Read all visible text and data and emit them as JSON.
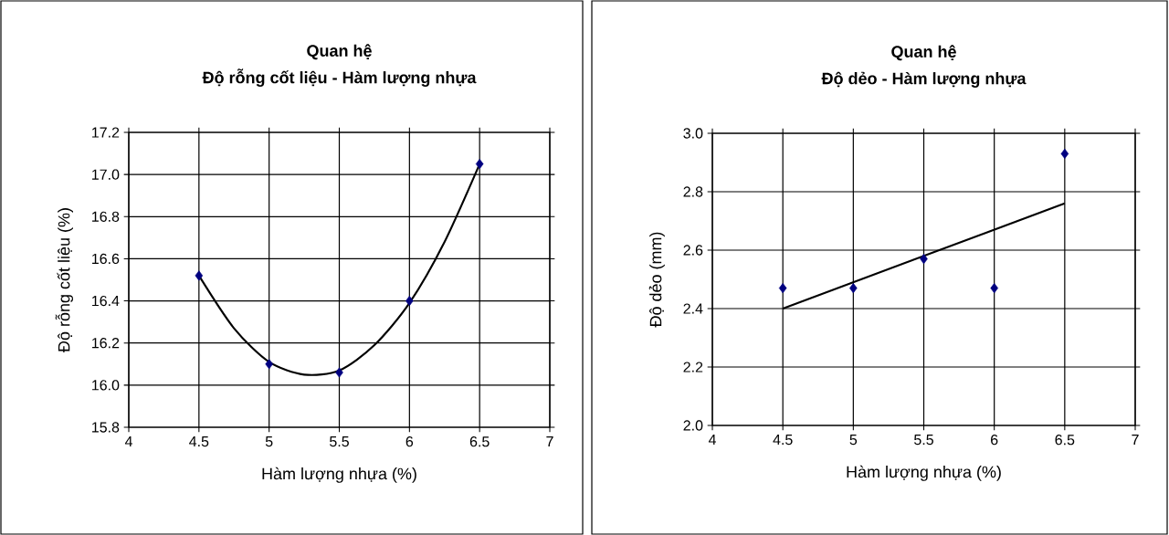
{
  "chart_data": [
    {
      "type": "scatter",
      "title": "Quan hệ",
      "subtitle": "Độ rỗng cốt liệu - Hàm lượng nhựa",
      "xlabel": "Hàm lượng nhựa (%)",
      "ylabel": "Độ rỗng cốt liệu (%)",
      "xlim": [
        4,
        7
      ],
      "xticks": [
        4,
        4.5,
        5,
        5.5,
        6,
        6.5,
        7
      ],
      "ylim": [
        15.8,
        17.2
      ],
      "yticks": [
        {
          "value": 15.8,
          "label": "15.8"
        },
        {
          "value": 16.0,
          "label": "16.0"
        },
        {
          "value": 16.2,
          "label": "16.2"
        },
        {
          "value": 16.4,
          "label": "16.4"
        },
        {
          "value": 16.6,
          "label": "16.6"
        },
        {
          "value": 16.8,
          "label": "16.8"
        },
        {
          "value": 17.0,
          "label": "17.0"
        },
        {
          "value": 17.2,
          "label": "17.2"
        }
      ],
      "grid": true,
      "series": [
        {
          "type": "line",
          "color": "#000000",
          "line_style": "solid",
          "marker": "none",
          "x": [
            4.5,
            4.75,
            5.0,
            5.25,
            5.5,
            5.75,
            6.0,
            6.25,
            6.5
          ],
          "values": [
            16.52,
            16.27,
            16.11,
            16.05,
            16.07,
            16.19,
            16.39,
            16.68,
            17.05
          ]
        },
        {
          "color": "#000080",
          "marker": "diamond",
          "x": [
            4.5,
            5,
            5.5,
            6,
            6.5
          ],
          "values": [
            16.52,
            16.1,
            16.06,
            16.4,
            17.05
          ]
        }
      ]
    },
    {
      "type": "scatter",
      "title": "Quan hệ",
      "subtitle": "Độ dẻo - Hàm lượng nhựa",
      "xlabel": "Hàm lượng nhựa (%)",
      "ylabel": "Độ dẻo (mm)",
      "xlim": [
        4,
        7
      ],
      "xticks": [
        4,
        4.5,
        5,
        5.5,
        6,
        6.5,
        7
      ],
      "ylim": [
        2.0,
        3.0
      ],
      "yticks": [
        {
          "value": 2.0,
          "label": "2.0"
        },
        {
          "value": 2.2,
          "label": "2.2"
        },
        {
          "value": 2.4,
          "label": "2.4"
        },
        {
          "value": 2.6,
          "label": "2.6"
        },
        {
          "value": 2.8,
          "label": "2.8"
        },
        {
          "value": 3.0,
          "label": "3.0"
        }
      ],
      "grid": true,
      "series": [
        {
          "type": "line",
          "color": "#000000",
          "line_style": "solid",
          "marker": "none",
          "x": [
            4.5,
            6.5
          ],
          "values": [
            2.4,
            2.76
          ]
        },
        {
          "color": "#000080",
          "marker": "diamond",
          "x": [
            4.5,
            5,
            5.5,
            6,
            6.5
          ],
          "values": [
            2.47,
            2.47,
            2.57,
            2.47,
            2.93
          ]
        }
      ]
    }
  ]
}
